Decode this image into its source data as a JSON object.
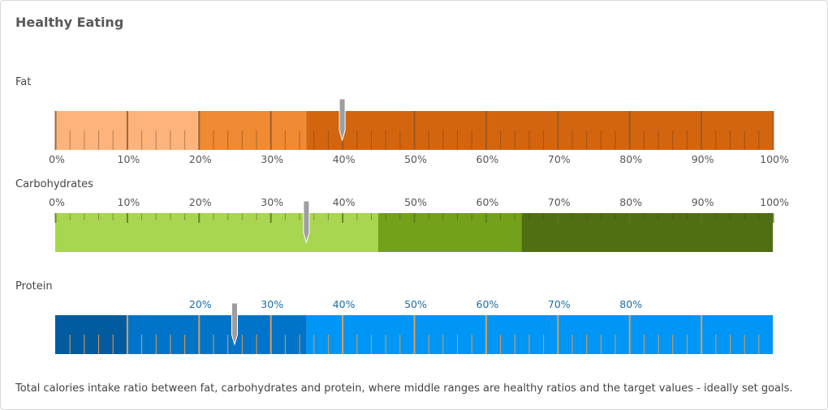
{
  "title": "Healthy Eating",
  "footer": "Total calories intake ratio between fat, carbohydrates and protein, where middle ranges are healthy ratios and the target values - ideally set goals.",
  "chart_data": [
    {
      "type": "bullet",
      "name": "Fat",
      "range": [
        0,
        100
      ],
      "target": 40,
      "bands": [
        {
          "from": 0,
          "to": 20,
          "color": "#ffb37c"
        },
        {
          "from": 20,
          "to": 35,
          "color": "#f08a33"
        },
        {
          "from": 35,
          "to": 100,
          "color": "#d4650f"
        }
      ],
      "major_ticks": [
        0,
        10,
        20,
        30,
        40,
        50,
        60,
        70,
        80,
        90,
        100
      ],
      "tick_labels": [
        "0%",
        "10%",
        "20%",
        "30%",
        "40%",
        "50%",
        "60%",
        "70%",
        "80%",
        "90%",
        "100%"
      ],
      "labels_position": "below",
      "tick_color": "#8a5a30",
      "label_color": "#555555"
    },
    {
      "type": "bullet",
      "name": "Carbohydrates",
      "range": [
        0,
        100
      ],
      "target": 35,
      "bands": [
        {
          "from": 0,
          "to": 45,
          "color": "#a8d650"
        },
        {
          "from": 45,
          "to": 65,
          "color": "#73a11a"
        },
        {
          "from": 65,
          "to": 100,
          "color": "#4f6f12"
        }
      ],
      "major_ticks": [
        0,
        10,
        20,
        30,
        40,
        50,
        60,
        70,
        80,
        90,
        100
      ],
      "tick_labels": [
        "0%",
        "10%",
        "20%",
        "30%",
        "40%",
        "50%",
        "60%",
        "70%",
        "80%",
        "90%",
        "100%"
      ],
      "labels_position": "above",
      "tick_color": "#5a7a20",
      "label_color": "#555555"
    },
    {
      "type": "bullet",
      "name": "Protein",
      "range": [
        0,
        100
      ],
      "target": 25,
      "bands": [
        {
          "from": 0,
          "to": 10,
          "color": "#005c9e"
        },
        {
          "from": 10,
          "to": 35,
          "color": "#0074c8"
        },
        {
          "from": 35,
          "to": 100,
          "color": "#0096f5"
        }
      ],
      "major_ticks": [
        10,
        20,
        30,
        40,
        50,
        60,
        70,
        80,
        90
      ],
      "tick_labels": [
        "",
        "20%",
        "30%",
        "40%",
        "50%",
        "60%",
        "70%",
        "80%",
        ""
      ],
      "labels_position": "above",
      "tick_color": "#e89a4a",
      "label_color": "#1a6ea8"
    }
  ]
}
